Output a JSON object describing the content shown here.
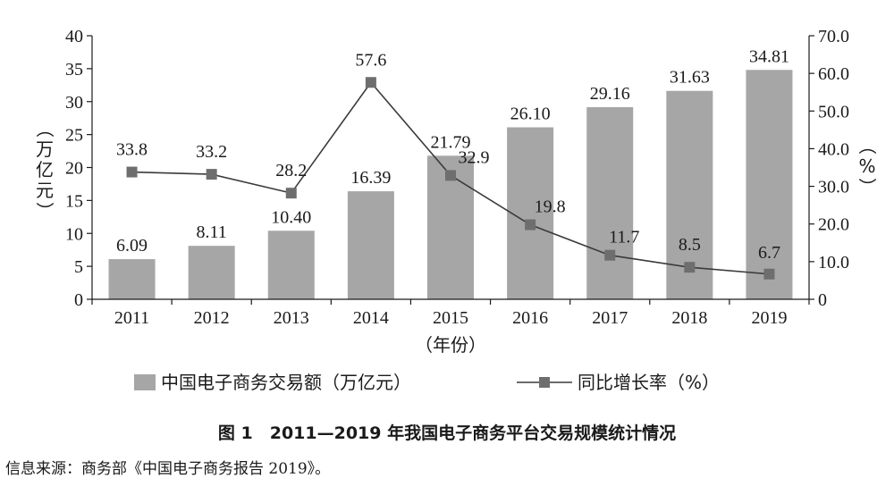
{
  "chart_data": {
    "type": "bar+line",
    "categories": [
      "2011",
      "2012",
      "2013",
      "2014",
      "2015",
      "2016",
      "2017",
      "2018",
      "2019"
    ],
    "series": [
      {
        "name": "中国电子商务交易额（万亿元）",
        "type": "bar",
        "axis": "left",
        "values": [
          6.09,
          8.11,
          10.4,
          16.39,
          21.79,
          26.1,
          29.16,
          31.63,
          34.81
        ],
        "labels": [
          "6.09",
          "8.11",
          "10.40",
          "16.39",
          "21.79",
          "26.10",
          "29.16",
          "31.63",
          "34.81"
        ]
      },
      {
        "name": "同比增长率（%）",
        "type": "line",
        "axis": "right",
        "values": [
          33.8,
          33.2,
          28.2,
          57.6,
          32.9,
          19.8,
          11.7,
          8.5,
          6.7
        ],
        "labels": [
          "33.8",
          "33.2",
          "28.2",
          "57.6",
          "32.9",
          "19.8",
          "11.7",
          "8.5",
          "6.7"
        ]
      }
    ],
    "yleft": {
      "label": "（万亿元）",
      "lim": [
        0,
        40
      ],
      "ticks": [
        "0",
        "5",
        "10",
        "15",
        "20",
        "25",
        "30",
        "35",
        "40"
      ]
    },
    "yright": {
      "label": "（%）",
      "lim": [
        0,
        70
      ],
      "ticks": [
        "0",
        "10.0",
        "20.0",
        "30.0",
        "40.0",
        "50.0",
        "60.0",
        "70.0"
      ]
    },
    "xlabel": "（年份）",
    "legend_position": "bottom",
    "colors": {
      "bar": "#a6a6a6",
      "line": "#3a3a3a",
      "marker": "#6e6e6e"
    }
  },
  "caption": "图 1　2011—2019 年我国电子商务平台交易规模统计情况",
  "source": "信息来源：商务部《中国电子商务报告 2019》。"
}
